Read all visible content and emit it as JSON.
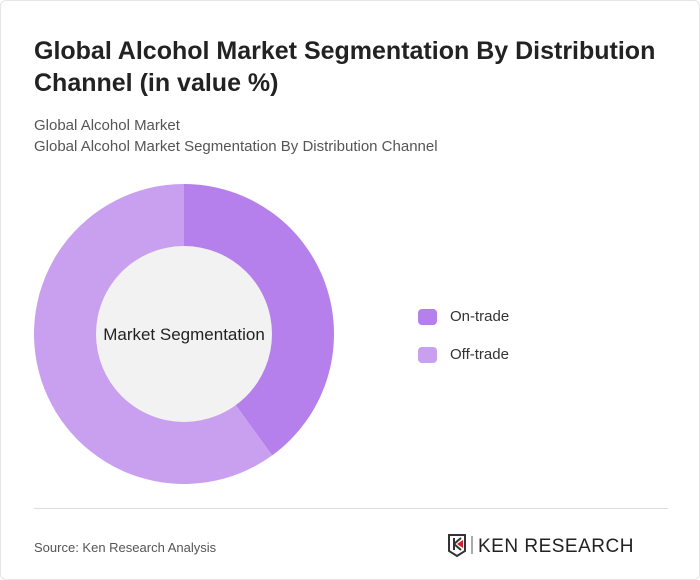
{
  "title": "Global Alcohol Market Segmentation By Distribution Channel (in value %)",
  "subtitle1": "Global Alcohol Market",
  "subtitle2": "Global Alcohol Market Segmentation By Distribution Channel",
  "source": "Source: Ken Research Analysis",
  "logo_text": "KEN RESEARCH",
  "chart_data": {
    "type": "pie",
    "donut": true,
    "center_label": "Market Segmentation",
    "categories": [
      "On-trade",
      "Off-trade"
    ],
    "values": [
      40,
      60
    ],
    "colors": [
      "#b580ec",
      "#c9a0f0"
    ],
    "legend_position": "right"
  }
}
